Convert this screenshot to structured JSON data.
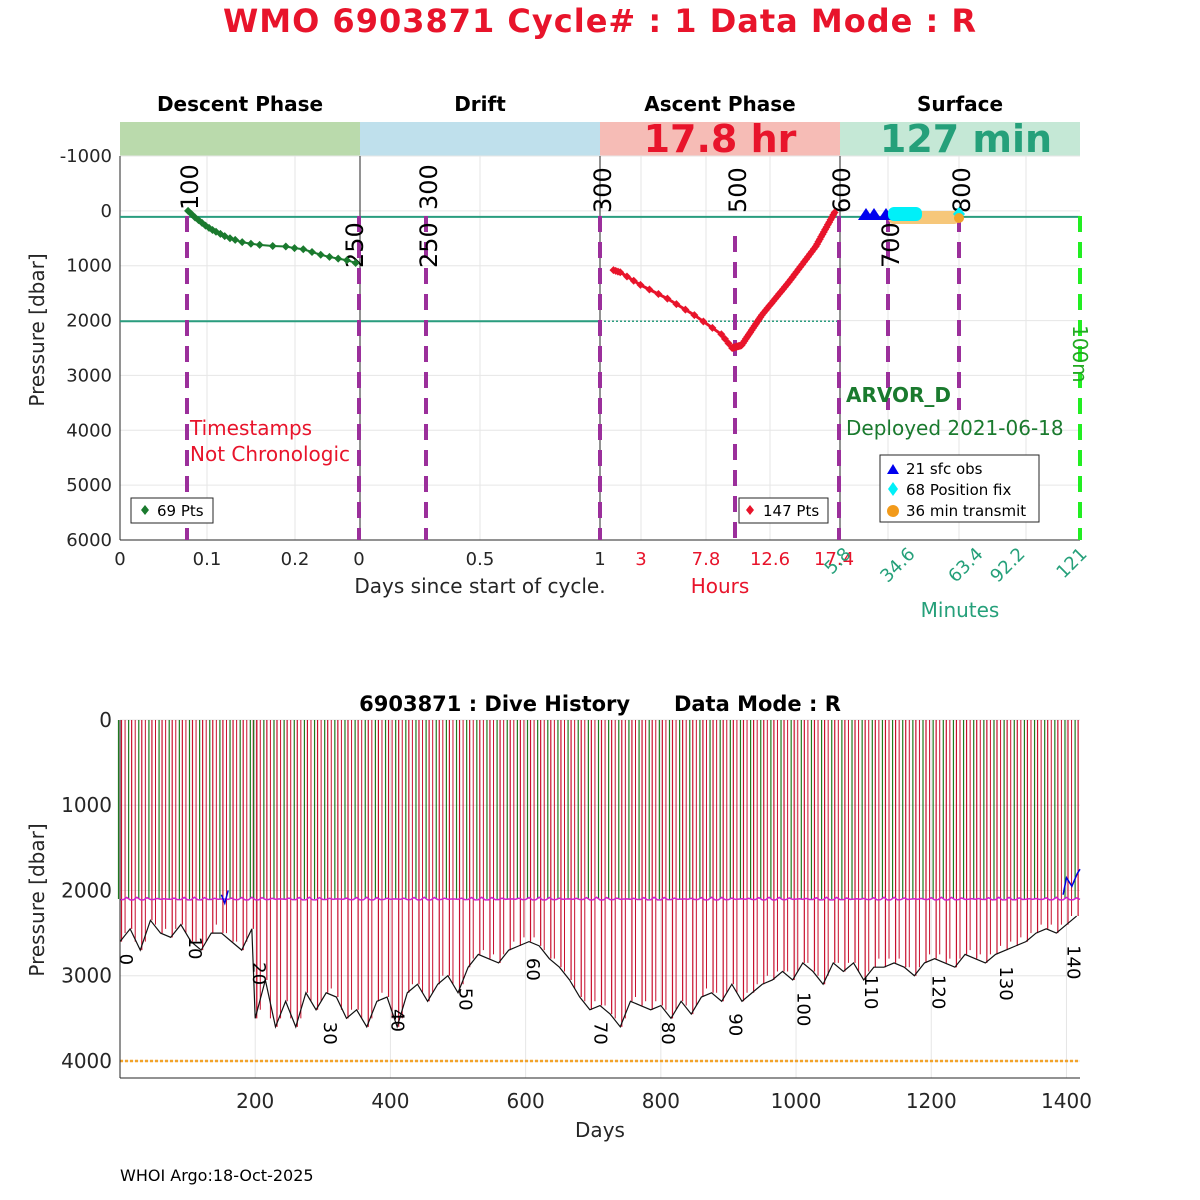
{
  "header": {
    "title": "WMO 6903871   Cycle# : 1   Data Mode : R"
  },
  "footer": {
    "text": "WHOI Argo:18-Oct-2025"
  },
  "colors": {
    "title_red": "#e8142b",
    "descent_green": "#1a7a2e",
    "ascent_red": "#e8142b",
    "phase_line_purple": "#9b2f9b",
    "teal_ref": "#2a9d7f",
    "surface_teal": "#25a07a",
    "bright_green": "#22ee22",
    "orange": "#f2a32a",
    "magenta": "#d020d0",
    "dive_red": "#c8102e",
    "dive_green": "#1f7a1f"
  },
  "chart_data": [
    {
      "type": "line",
      "name": "cycle-profile",
      "phase_titles": [
        "Descent Phase",
        "Drift",
        "Ascent Phase",
        "Surface"
      ],
      "ascent_duration_label": "17.8 hr",
      "surface_duration_label": "127 min",
      "ylabel": "Pressure [dbar]",
      "ylim": [
        -1000,
        6000
      ],
      "yticks": [
        "-1000",
        "0",
        "1000",
        "2000",
        "3000",
        "4000",
        "5000",
        "6000"
      ],
      "descent": {
        "xlabel": "Days since start of cycle.",
        "xticks": [
          "0",
          "0.1",
          "0.2",
          "0"
        ],
        "points_label": "69 Pts",
        "x": [
          0.078,
          0.082,
          0.086,
          0.09,
          0.094,
          0.098,
          0.102,
          0.106,
          0.11,
          0.115,
          0.12,
          0.126,
          0.132,
          0.14,
          0.15,
          0.16,
          0.175,
          0.19,
          0.2,
          0.21,
          0.22,
          0.23,
          0.24,
          0.25,
          0.26,
          0.27
        ],
        "y": [
          0,
          60,
          120,
          170,
          220,
          270,
          310,
          350,
          380,
          420,
          460,
          500,
          530,
          570,
          600,
          620,
          640,
          650,
          680,
          700,
          750,
          800,
          840,
          870,
          900,
          950
        ]
      },
      "drift": {
        "xticks": [
          "0",
          "0.5",
          "1"
        ]
      },
      "ascent": {
        "xlabel": "Hours",
        "xticks": [
          "3",
          "7.8",
          "12.6",
          "17.4"
        ],
        "points_label": "147 Pts",
        "x": [
          1.0,
          1.5,
          3.0,
          5.0,
          7.0,
          9.0,
          9.8,
          10.5,
          12.0,
          14.0,
          16.0,
          17.4
        ],
        "y": [
          1080,
          1120,
          1350,
          1600,
          1900,
          2250,
          2500,
          2450,
          1900,
          1300,
          650,
          30
        ]
      },
      "surface": {
        "xlabel": "Minutes",
        "xticks": [
          "5.8",
          "34.6",
          "63.4",
          "92.2",
          "121"
        ],
        "float_model": "ARVOR_D",
        "deployed": "Deployed 2021-06-18",
        "legend": [
          "21 sfc obs",
          "68 Position fix",
          "36 min transmit"
        ]
      },
      "vertical_markers": [
        "100",
        "250",
        "250",
        "300",
        "300",
        "500",
        "600",
        "700",
        "800",
        "100m"
      ],
      "reference_lines": [
        0,
        2000
      ],
      "warning": [
        "Timestamps",
        "Not Chronologic"
      ]
    },
    {
      "type": "line",
      "name": "dive-history",
      "title": "6903871 : Dive History      Data Mode : R",
      "xlabel": "Days",
      "ylabel": "Pressure [dbar]",
      "xlim": [
        0,
        1420
      ],
      "ylim": [
        0,
        4200
      ],
      "xticks": [
        "200",
        "400",
        "600",
        "800",
        "1000",
        "1200",
        "1400"
      ],
      "yticks": [
        "0",
        "1000",
        "2000",
        "3000",
        "4000"
      ],
      "orange_line": 4000,
      "drift_pressure": 2100,
      "cycle_labels": [
        "0",
        "10",
        "20",
        "30",
        "40",
        "50",
        "60",
        "70",
        "80",
        "90",
        "100",
        "110",
        "120",
        "130",
        "140"
      ],
      "cycle_label_days": [
        0,
        90,
        185,
        290,
        390,
        490,
        590,
        690,
        790,
        890,
        990,
        1090,
        1190,
        1290,
        1390
      ],
      "profile_days": [
        0,
        15,
        30,
        45,
        60,
        75,
        90,
        105,
        120,
        135,
        150,
        165,
        180,
        195,
        200,
        215,
        230,
        245,
        260,
        275,
        290,
        305,
        320,
        335,
        350,
        365,
        380,
        395,
        410,
        425,
        440,
        455,
        470,
        485,
        500,
        515,
        530,
        545,
        560,
        575,
        590,
        605,
        620,
        635,
        650,
        665,
        680,
        695,
        710,
        725,
        740,
        755,
        770,
        785,
        800,
        815,
        830,
        845,
        860,
        875,
        890,
        905,
        920,
        935,
        950,
        965,
        980,
        995,
        1010,
        1025,
        1040,
        1055,
        1070,
        1085,
        1100,
        1115,
        1130,
        1145,
        1160,
        1175,
        1190,
        1205,
        1220,
        1235,
        1250,
        1265,
        1280,
        1295,
        1310,
        1325,
        1340,
        1355,
        1370,
        1385,
        1400,
        1415
      ],
      "profile_max": [
        2600,
        2450,
        2700,
        2350,
        2500,
        2550,
        2400,
        2600,
        2700,
        2500,
        2500,
        2600,
        2700,
        2450,
        3500,
        3050,
        3600,
        3300,
        3600,
        3200,
        3400,
        3200,
        3250,
        3500,
        3400,
        3600,
        3300,
        3250,
        3600,
        3200,
        3100,
        3300,
        3100,
        3000,
        3200,
        2900,
        2750,
        2800,
        2850,
        2700,
        2650,
        2600,
        2650,
        2800,
        2900,
        3050,
        3250,
        3400,
        3350,
        3450,
        3600,
        3300,
        3350,
        3400,
        3350,
        3500,
        3300,
        3450,
        3250,
        3200,
        3300,
        3100,
        3300,
        3200,
        3100,
        3050,
        2950,
        3050,
        2850,
        2950,
        3100,
        2850,
        2950,
        2850,
        3050,
        2900,
        2900,
        2850,
        2900,
        3000,
        2850,
        2800,
        2850,
        2900,
        2750,
        2800,
        2850,
        2750,
        2700,
        2650,
        2600,
        2500,
        2450,
        2500,
        2400,
        2300
      ],
      "profile_min_flags": "green bars reach 0 dbar"
    }
  ]
}
